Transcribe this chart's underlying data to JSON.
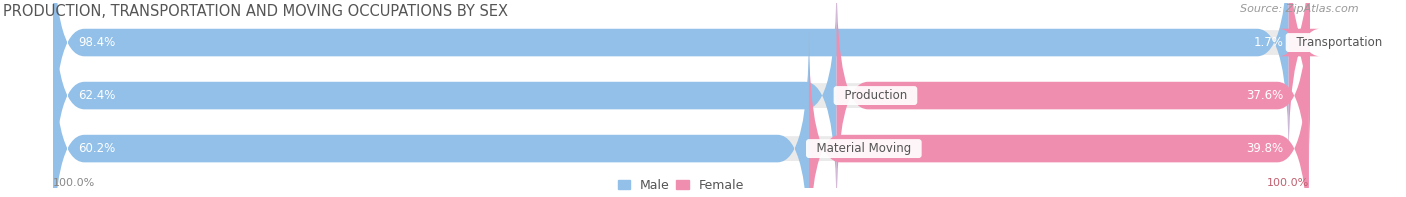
{
  "title": "PRODUCTION, TRANSPORTATION AND MOVING OCCUPATIONS BY SEX",
  "source_text": "Source: ZipAtlas.com",
  "categories": [
    "Transportation",
    "Production",
    "Material Moving"
  ],
  "male_values": [
    98.4,
    62.4,
    60.2
  ],
  "female_values": [
    1.7,
    37.6,
    39.8
  ],
  "male_color": "#92C0E8",
  "female_color": "#F08EB0",
  "bar_bg_color": "#EAEAEA",
  "title_fontsize": 10.5,
  "source_fontsize": 8,
  "value_fontsize": 8.5,
  "legend_fontsize": 9,
  "axis_label_fontsize": 8,
  "figure_bg": "#FFFFFF",
  "left_label": "100.0%",
  "right_label": "100.0%",
  "male_text_color": "#FFFFFF",
  "female_text_color": "#FFFFFF",
  "category_text_color": "#555555",
  "axis_text_color": "#888888",
  "right_axis_text_color": "#C06070"
}
